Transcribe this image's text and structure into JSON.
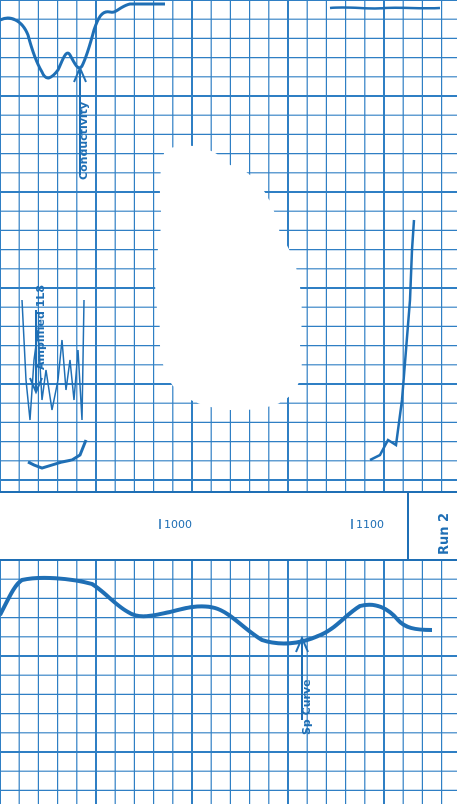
{
  "colors": {
    "ink": "#1f6fb5",
    "grid": "#2f7fc4",
    "paper": "#ffffff"
  },
  "chart_data": {
    "type": "line",
    "title": "",
    "xlabel": "",
    "ylabel": "",
    "x_tick_labels": [
      "1000",
      "1100"
    ],
    "run_label": "Run 2",
    "annotations": [
      "Conductivity",
      "Amplified 1L8",
      "Sp Curve"
    ],
    "grid": true,
    "legend": "none"
  }
}
